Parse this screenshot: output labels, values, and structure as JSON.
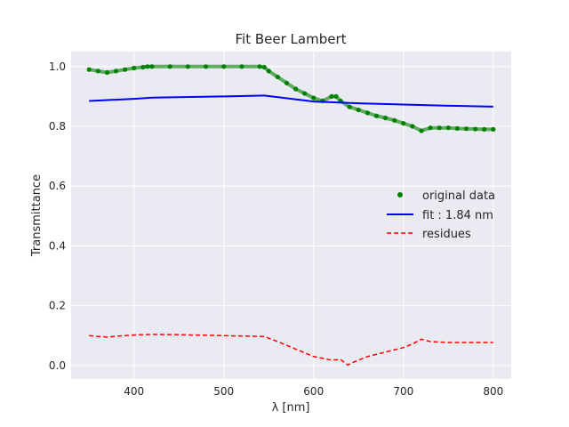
{
  "chart_data": {
    "type": "line",
    "title": "Fit Beer Lambert",
    "xlabel": "λ [nm]",
    "ylabel": "Transmittance",
    "xlim": [
      330,
      820
    ],
    "ylim": [
      -0.045,
      1.05
    ],
    "xticks": [
      400,
      500,
      600,
      700,
      800
    ],
    "yticks": [
      0.0,
      0.2,
      0.4,
      0.6,
      0.8,
      1.0
    ],
    "ytick_labels": [
      "0.0",
      "0.2",
      "0.4",
      "0.6",
      "0.8",
      "1.0"
    ],
    "grid": true,
    "background": "#eaeaf2",
    "legend": {
      "placement": "center-right",
      "entries": [
        "original data",
        "fit : 1.84 nm",
        "residues"
      ]
    },
    "series": [
      {
        "name": "original data",
        "style": "points",
        "color": "#008000",
        "x": [
          350,
          360,
          370,
          380,
          390,
          400,
          410,
          415,
          420,
          440,
          460,
          480,
          500,
          520,
          540,
          545,
          550,
          560,
          570,
          580,
          590,
          600,
          610,
          620,
          625,
          630,
          640,
          650,
          660,
          670,
          680,
          690,
          700,
          710,
          720,
          730,
          740,
          750,
          760,
          770,
          780,
          790,
          800
        ],
        "y": [
          0.99,
          0.985,
          0.98,
          0.985,
          0.99,
          0.995,
          0.998,
          1.0,
          1.0,
          1.0,
          1.0,
          1.0,
          1.0,
          1.0,
          1.0,
          0.998,
          0.985,
          0.965,
          0.945,
          0.925,
          0.91,
          0.895,
          0.885,
          0.9,
          0.9,
          0.885,
          0.865,
          0.855,
          0.845,
          0.835,
          0.828,
          0.82,
          0.81,
          0.8,
          0.785,
          0.795,
          0.795,
          0.795,
          0.793,
          0.792,
          0.791,
          0.79,
          0.79
        ]
      },
      {
        "name": "fit : 1.84 nm",
        "style": "solid",
        "color": "#0000ff",
        "x": [
          350,
          400,
          420,
          500,
          545,
          600,
          650,
          700,
          750,
          800
        ],
        "y": [
          0.885,
          0.892,
          0.896,
          0.9,
          0.903,
          0.883,
          0.877,
          0.873,
          0.869,
          0.866
        ]
      },
      {
        "name": "residues",
        "style": "dashed",
        "color": "#ff0000",
        "x": [
          350,
          360,
          370,
          380,
          390,
          400,
          420,
          450,
          500,
          545,
          560,
          580,
          600,
          620,
          630,
          638,
          645,
          660,
          680,
          700,
          710,
          720,
          730,
          750,
          800
        ],
        "y": [
          0.1,
          0.097,
          0.095,
          0.098,
          0.1,
          0.102,
          0.104,
          0.103,
          0.1,
          0.097,
          0.08,
          0.055,
          0.03,
          0.018,
          0.02,
          0.002,
          0.012,
          0.03,
          0.045,
          0.06,
          0.072,
          0.088,
          0.08,
          0.077,
          0.077
        ]
      }
    ]
  }
}
